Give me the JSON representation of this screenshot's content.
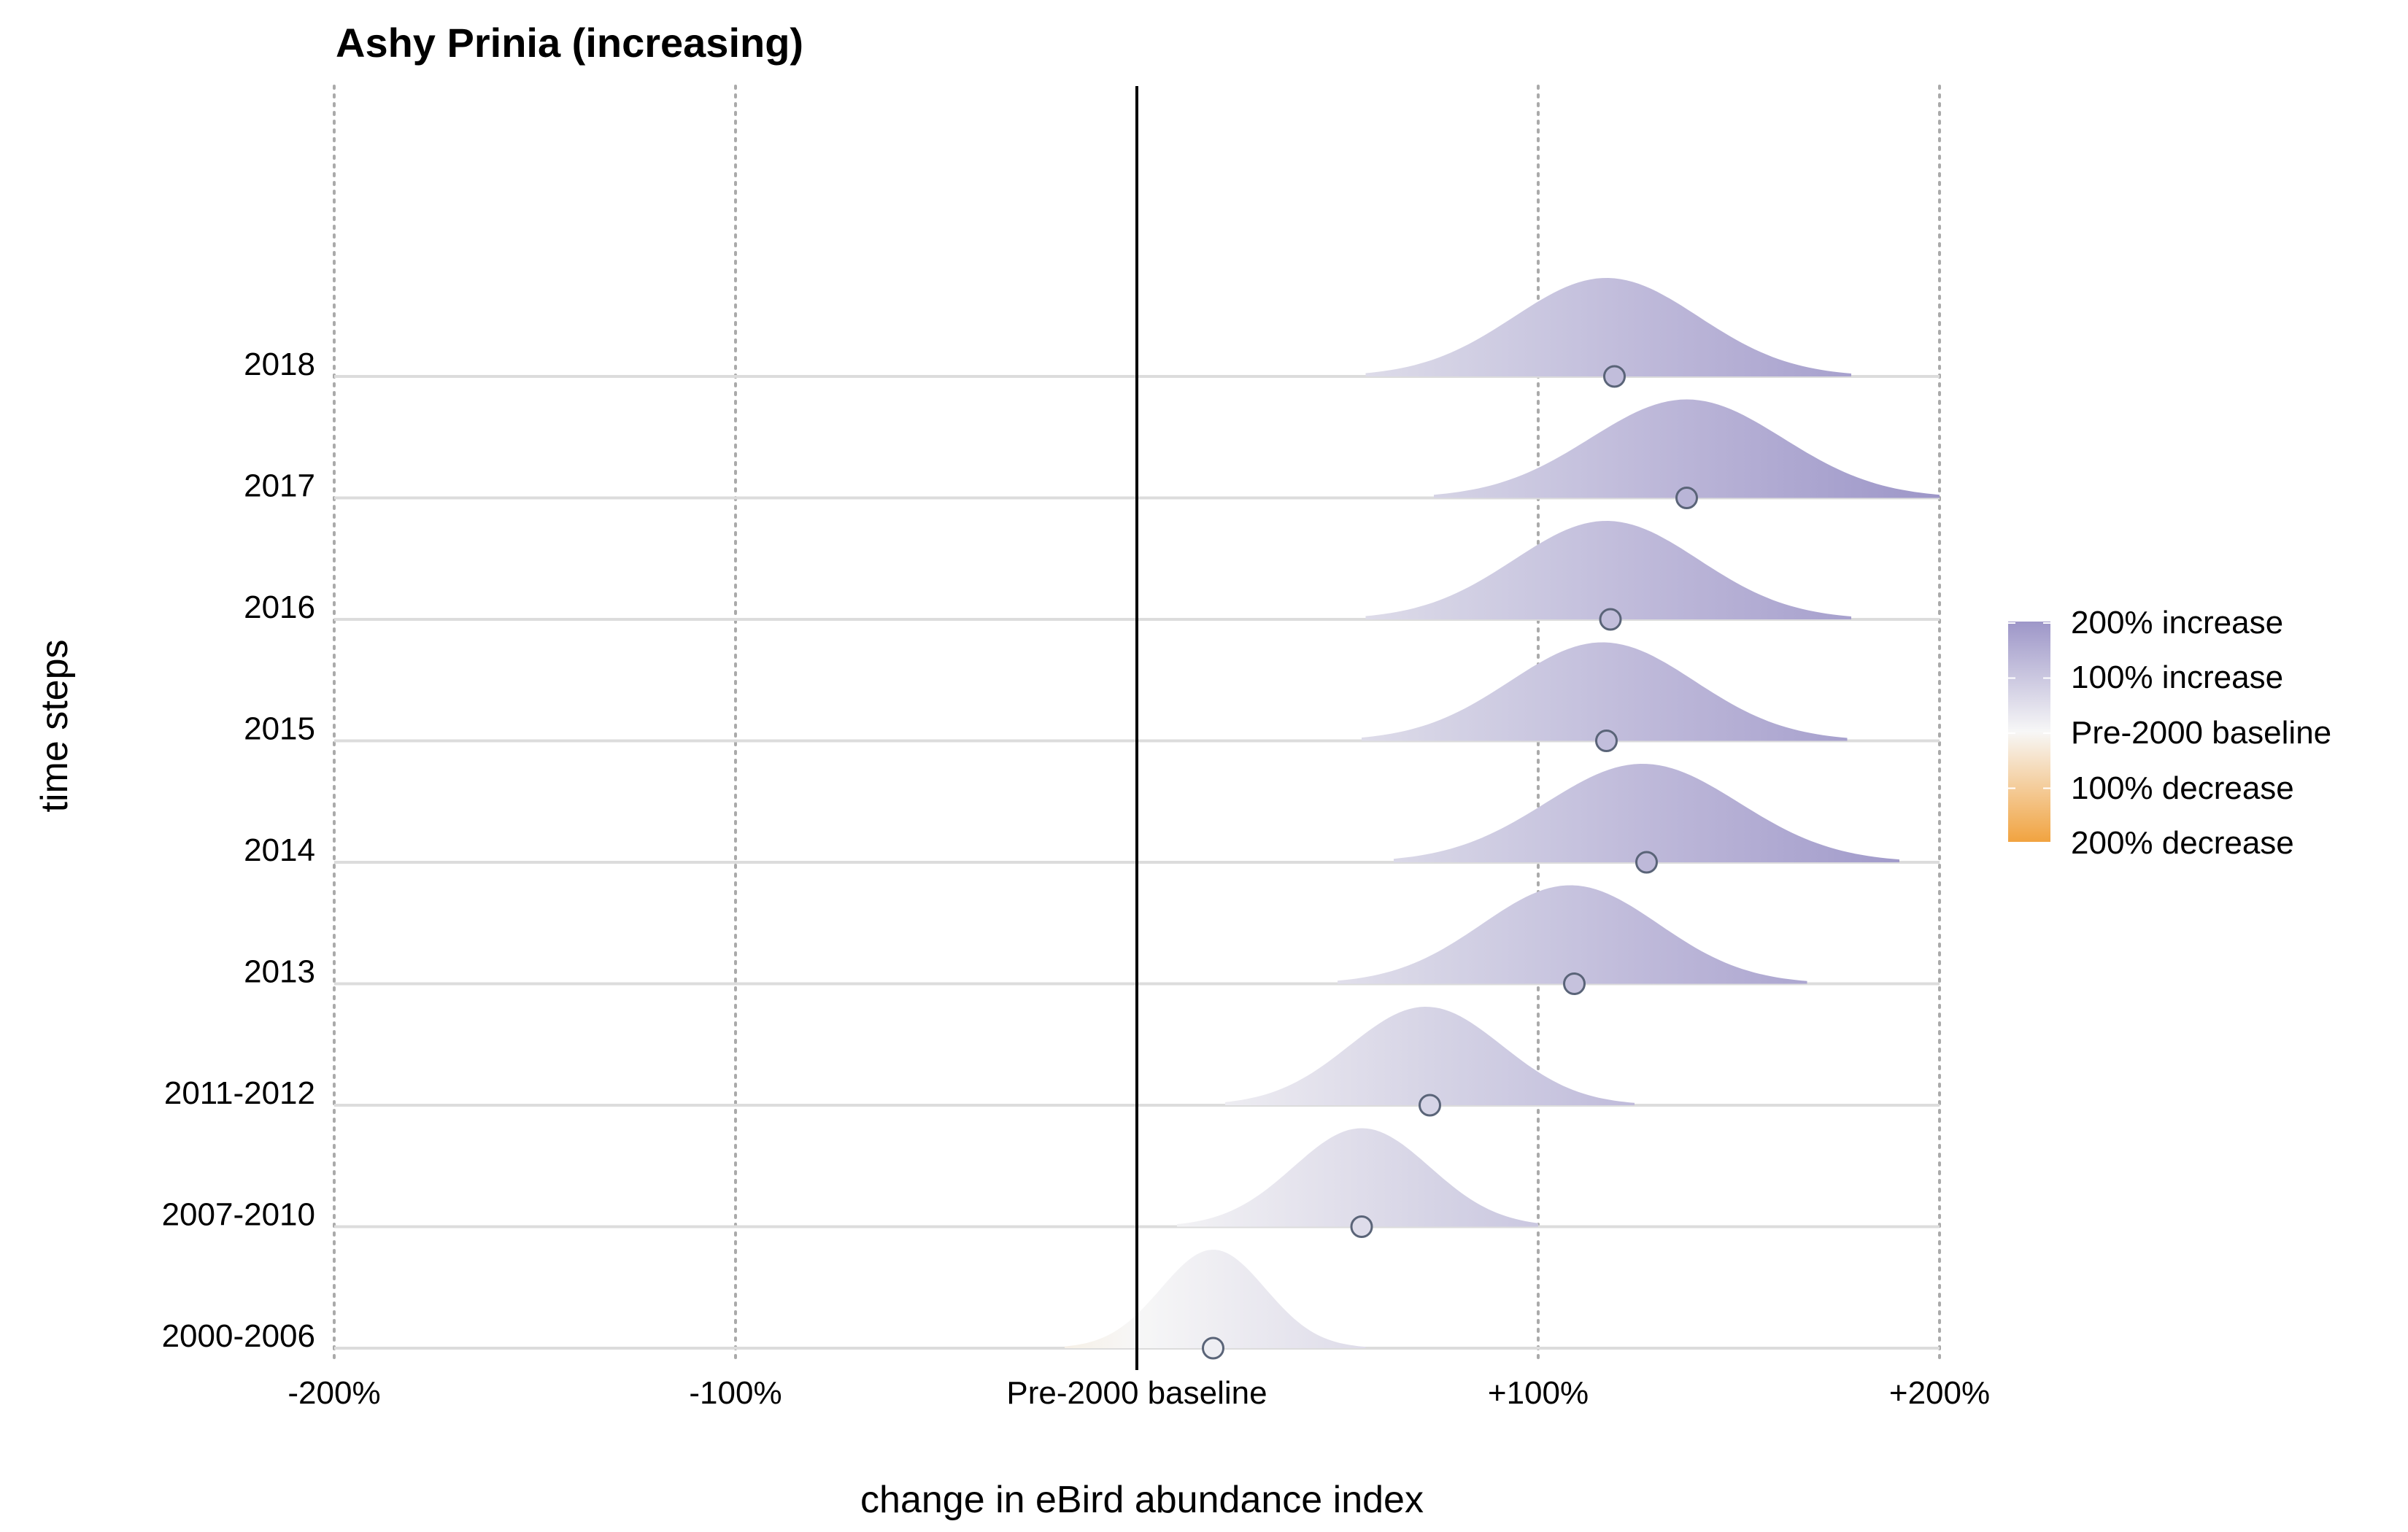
{
  "chart_data": {
    "type": "ridgeline",
    "title": "Ashy Prinia (increasing)",
    "xlabel": "change in eBird abundance index",
    "ylabel": "time steps",
    "xlim": [
      -200,
      200
    ],
    "x_ticks": [
      -200,
      -100,
      0,
      100,
      200
    ],
    "x_tick_labels": [
      "-200%",
      "-100%",
      "Pre-2000 baseline",
      "+100%",
      "+200%"
    ],
    "categories": [
      "2000-2006",
      "2007-2010",
      "2011-2012",
      "2013",
      "2014",
      "2015",
      "2016",
      "2017",
      "2018"
    ],
    "series": [
      {
        "category": "2000-2006",
        "median": 19,
        "peak": 19,
        "sd": 13,
        "min": -18,
        "max": 57
      },
      {
        "category": "2007-2010",
        "median": 56,
        "peak": 56,
        "sd": 17,
        "min": 10,
        "max": 100
      },
      {
        "category": "2011-2012",
        "median": 73,
        "peak": 72,
        "sd": 19,
        "min": 22,
        "max": 124
      },
      {
        "category": "2013",
        "median": 109,
        "peak": 108,
        "sd": 22,
        "min": 50,
        "max": 167
      },
      {
        "category": "2014",
        "median": 127,
        "peak": 126,
        "sd": 24,
        "min": 64,
        "max": 190
      },
      {
        "category": "2015",
        "median": 117,
        "peak": 116,
        "sd": 23,
        "min": 56,
        "max": 177
      },
      {
        "category": "2016",
        "median": 118,
        "peak": 117,
        "sd": 23,
        "min": 57,
        "max": 178
      },
      {
        "category": "2017",
        "median": 137,
        "peak": 137,
        "sd": 24,
        "min": 74,
        "max": 200
      },
      {
        "category": "2018",
        "median": 119,
        "peak": 117,
        "sd": 23,
        "min": 57,
        "max": 178
      }
    ],
    "vline_at": 0,
    "grid": "vertical dotted",
    "legend": {
      "position": "right",
      "entries": [
        "200% increase",
        "100% increase",
        "Pre-2000 baseline",
        "100% decrease",
        "200% decrease"
      ],
      "colors": {
        "increase": "#9d96c8",
        "baseline": "#f7f7f7",
        "decrease": "#f1a340"
      }
    }
  }
}
